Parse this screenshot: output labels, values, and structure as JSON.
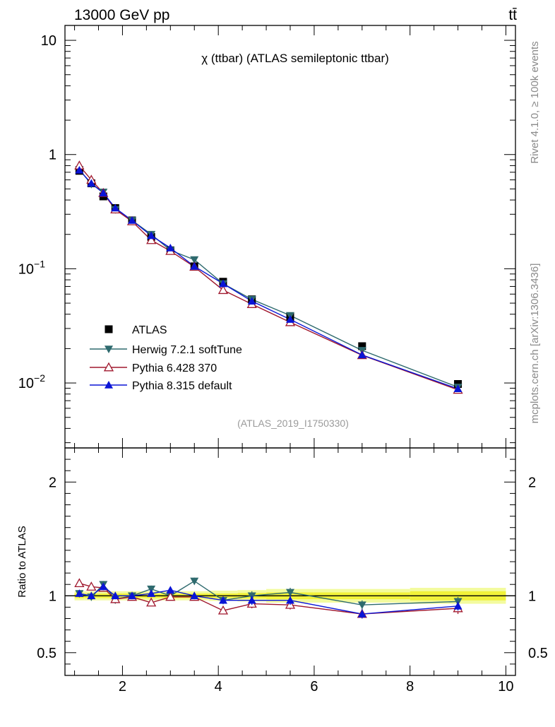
{
  "header": {
    "left": "13000 GeV pp",
    "right": "tt̄"
  },
  "side_labels": {
    "rivet": "Rivet 4.1.0, ≥ 100k events",
    "mcplots": "mcplots.cern.ch [arXiv:1306.3436]"
  },
  "colors": {
    "atlas": "#000000",
    "herwig": "#2e6a6e",
    "pythia6": "#a0182e",
    "pythia8": "#0a14d6",
    "band_inner": "#f1f23a",
    "band_outer": "#f3fb9e"
  },
  "chart_data": [
    {
      "type": "line",
      "panel": "main",
      "title": "χ (ttbar) (ATLAS semileptonic ttbar)",
      "analysis_id": "(ATLAS_2019_I1750330)",
      "xlabel": "",
      "ylabel": "",
      "xlim": [
        0.8,
        10.2
      ],
      "ylim": [
        0.0027,
        13.5
      ],
      "yscale": "log",
      "y_tick_labels": [
        {
          "value": 10,
          "mant": "10",
          "exp": ""
        },
        {
          "value": 1,
          "mant": "1",
          "exp": ""
        },
        {
          "value": 0.1,
          "mant": "10",
          "exp": "−1"
        },
        {
          "value": 0.01,
          "mant": "10",
          "exp": "−2"
        }
      ],
      "legend_position": "lower-left",
      "series": [
        {
          "name": "ATLAS",
          "marker": "square",
          "color": "#000000",
          "line": false,
          "x": [
            1.1,
            1.35,
            1.6,
            1.85,
            2.2,
            2.6,
            3.0,
            3.5,
            4.1,
            4.7,
            5.5,
            7.0,
            9.0
          ],
          "y": [
            0.72,
            0.56,
            0.43,
            0.34,
            0.265,
            0.19,
            0.145,
            0.105,
            0.077,
            0.054,
            0.038,
            0.021,
            0.0098
          ]
        },
        {
          "name": "Herwig 7.2.1 softTune",
          "marker": "triangle-down",
          "color": "#2e6a6e",
          "line": true,
          "x": [
            1.1,
            1.35,
            1.6,
            1.85,
            2.2,
            2.6,
            3.0,
            3.5,
            4.1,
            4.7,
            5.5,
            7.0,
            9.0
          ],
          "y": [
            0.74,
            0.55,
            0.47,
            0.33,
            0.265,
            0.2,
            0.145,
            0.12,
            0.074,
            0.054,
            0.039,
            0.0193,
            0.0092
          ]
        },
        {
          "name": "Pythia 6.428 370",
          "marker": "triangle-up-open",
          "color": "#a0182e",
          "line": true,
          "x": [
            1.1,
            1.35,
            1.6,
            1.85,
            2.2,
            2.6,
            3.0,
            3.5,
            4.1,
            4.7,
            5.5,
            7.0,
            9.0
          ],
          "y": [
            0.8,
            0.6,
            0.46,
            0.33,
            0.26,
            0.178,
            0.143,
            0.104,
            0.065,
            0.049,
            0.034,
            0.0175,
            0.0087
          ]
        },
        {
          "name": "Pythia 8.315 default",
          "marker": "triangle-up",
          "color": "#0a14d6",
          "line": true,
          "x": [
            1.1,
            1.35,
            1.6,
            1.85,
            2.2,
            2.6,
            3.0,
            3.5,
            4.1,
            4.7,
            5.5,
            7.0,
            9.0
          ],
          "y": [
            0.73,
            0.56,
            0.46,
            0.34,
            0.265,
            0.195,
            0.152,
            0.105,
            0.074,
            0.052,
            0.036,
            0.0176,
            0.0089
          ]
        }
      ]
    },
    {
      "type": "line",
      "panel": "ratio",
      "xlabel": "",
      "ylabel": "Ratio to ATLAS",
      "xlim": [
        0.8,
        10.2
      ],
      "ylim": [
        0.3,
        2.3
      ],
      "x_tick_labels": [
        "2",
        "4",
        "6",
        "8",
        "10"
      ],
      "y_tick_labels_left": [
        "0.5",
        "1",
        "2"
      ],
      "y_tick_labels_right": [
        "0.5",
        "1",
        "2"
      ],
      "band": {
        "x_edges": [
          1.0,
          1.2,
          1.5,
          1.75,
          2.0,
          2.4,
          2.8,
          3.2,
          3.8,
          4.4,
          5.0,
          6.0,
          8.0,
          10.0
        ],
        "inner_halfwidth": [
          0.02,
          0.02,
          0.02,
          0.02,
          0.02,
          0.02,
          0.02,
          0.02,
          0.02,
          0.025,
          0.03,
          0.03,
          0.04
        ],
        "outer_halfwidth": [
          0.04,
          0.04,
          0.04,
          0.04,
          0.04,
          0.04,
          0.04,
          0.04,
          0.045,
          0.05,
          0.06,
          0.06,
          0.07
        ]
      },
      "series": [
        {
          "name": "Herwig 7.2.1 softTune",
          "color": "#2e6a6e",
          "marker": "triangle-down",
          "x": [
            1.1,
            1.35,
            1.6,
            1.85,
            2.2,
            2.6,
            3.0,
            3.5,
            4.1,
            4.7,
            5.5,
            7.0,
            9.0
          ],
          "y": [
            1.02,
            0.99,
            1.1,
            0.97,
            1.0,
            1.06,
            1.0,
            1.13,
            0.96,
            1.0,
            1.03,
            0.92,
            0.95
          ],
          "err": [
            0.02,
            0.02,
            0.03,
            0.04,
            0.03,
            0.03,
            0.03,
            0.03,
            0.03,
            0.04,
            0.04,
            0.04,
            0.04
          ]
        },
        {
          "name": "Pythia 6.428 370",
          "color": "#a0182e",
          "marker": "triangle-up-open",
          "x": [
            1.1,
            1.35,
            1.6,
            1.85,
            2.2,
            2.6,
            3.0,
            3.5,
            4.1,
            4.7,
            5.5,
            7.0,
            9.0
          ],
          "y": [
            1.11,
            1.08,
            1.07,
            0.97,
            0.99,
            0.94,
            0.99,
            0.99,
            0.87,
            0.93,
            0.92,
            0.84,
            0.89
          ],
          "err": [
            0.02,
            0.02,
            0.03,
            0.03,
            0.03,
            0.03,
            0.03,
            0.03,
            0.03,
            0.04,
            0.04,
            0.03,
            0.05
          ]
        },
        {
          "name": "Pythia 8.315 default",
          "color": "#0a14d6",
          "marker": "triangle-up",
          "x": [
            1.1,
            1.35,
            1.6,
            1.85,
            2.2,
            2.6,
            3.0,
            3.5,
            4.1,
            4.7,
            5.5,
            7.0,
            9.0
          ],
          "y": [
            1.02,
            1.0,
            1.08,
            1.0,
            1.0,
            1.02,
            1.05,
            1.0,
            0.96,
            0.96,
            0.96,
            0.84,
            0.91
          ],
          "err": [
            0.02,
            0.02,
            0.03,
            0.03,
            0.03,
            0.03,
            0.03,
            0.03,
            0.03,
            0.04,
            0.04,
            0.04,
            0.04
          ]
        }
      ]
    }
  ]
}
